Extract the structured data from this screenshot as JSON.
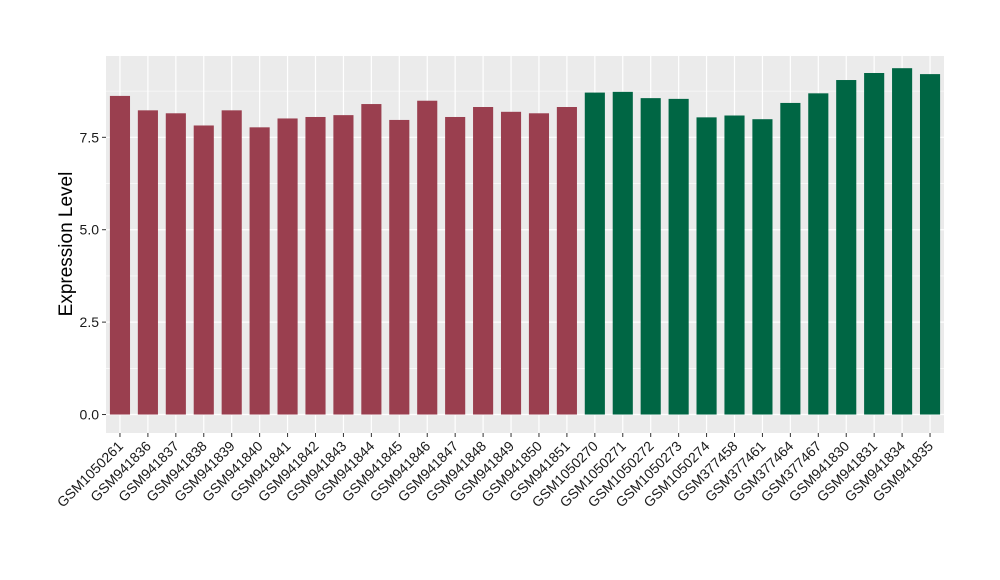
{
  "chart_data": {
    "type": "bar",
    "title": "",
    "xlabel": "",
    "ylabel": "Expression Level",
    "ylim": [
      -0.5,
      9.7
    ],
    "yticks": [
      0.0,
      2.5,
      5.0,
      7.5
    ],
    "ytick_labels": [
      "0.0",
      "2.5",
      "5.0",
      "7.5"
    ],
    "grid": true,
    "legend": "none",
    "colors": {
      "panel": "#ebebeb",
      "grid": "#ffffff",
      "group1": "#9a3f4f",
      "group2": "#006644"
    },
    "categories": [
      "GSM1050261",
      "GSM941836",
      "GSM941837",
      "GSM941838",
      "GSM941839",
      "GSM941840",
      "GSM941841",
      "GSM941842",
      "GSM941843",
      "GSM941844",
      "GSM941845",
      "GSM941846",
      "GSM941847",
      "GSM941848",
      "GSM941849",
      "GSM941850",
      "GSM941851",
      "GSM1050270",
      "GSM1050271",
      "GSM1050272",
      "GSM1050273",
      "GSM1050274",
      "GSM377458",
      "GSM377461",
      "GSM377464",
      "GSM377467",
      "GSM941830",
      "GSM941831",
      "GSM941834",
      "GSM941835"
    ],
    "values": [
      8.62,
      8.23,
      8.15,
      7.82,
      8.23,
      7.77,
      8.01,
      8.05,
      8.1,
      8.4,
      7.97,
      8.49,
      8.05,
      8.32,
      8.19,
      8.15,
      8.32,
      8.71,
      8.73,
      8.56,
      8.54,
      8.04,
      8.09,
      7.99,
      8.43,
      8.69,
      9.05,
      9.24,
      9.37,
      9.21
    ],
    "bar_groups": [
      1,
      1,
      1,
      1,
      1,
      1,
      1,
      1,
      1,
      1,
      1,
      1,
      1,
      1,
      1,
      1,
      1,
      2,
      2,
      2,
      2,
      2,
      2,
      2,
      2,
      2,
      2,
      2,
      2,
      2
    ]
  }
}
